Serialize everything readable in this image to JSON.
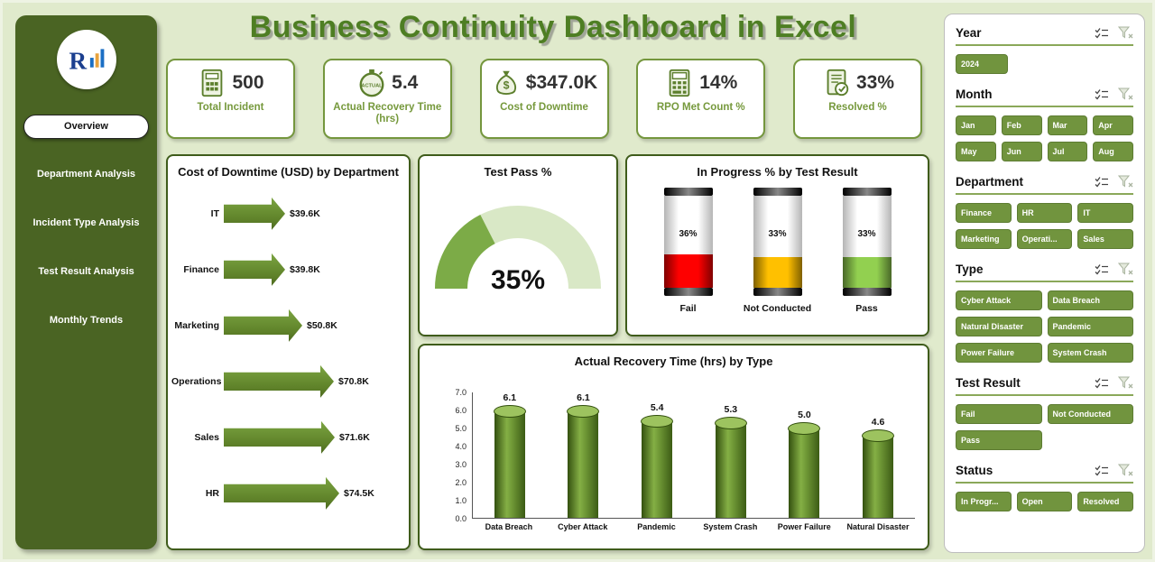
{
  "title": "Business Continuity Dashboard in Excel",
  "sidebar": {
    "items": [
      {
        "label": "Overview",
        "active": true
      },
      {
        "label": "Department Analysis",
        "active": false
      },
      {
        "label": "Incident Type Analysis",
        "active": false
      },
      {
        "label": "Test Result Analysis",
        "active": false
      },
      {
        "label": "Monthly Trends",
        "active": false
      }
    ]
  },
  "kpis": [
    {
      "value": "500",
      "label": "Total Incident",
      "icon": "incident-report-icon"
    },
    {
      "value": "5.4",
      "label": "Actual Recovery Time (hrs)",
      "icon": "stopwatch-icon"
    },
    {
      "value": "$347.0K",
      "label": "Cost of Downtime",
      "icon": "money-bag-icon"
    },
    {
      "value": "14%",
      "label": "RPO Met Count %",
      "icon": "calculator-icon"
    },
    {
      "value": "33%",
      "label": "Resolved %",
      "icon": "document-check-icon"
    }
  ],
  "chart_data": [
    {
      "type": "bar",
      "orientation": "horizontal",
      "title": "Cost of Downtime (USD) by Department",
      "categories": [
        "IT",
        "Finance",
        "Marketing",
        "Operations",
        "Sales",
        "HR"
      ],
      "values": [
        39.6,
        39.8,
        50.8,
        70.8,
        71.6,
        74.5
      ],
      "labels": [
        "$39.6K",
        "$39.8K",
        "$50.8K",
        "$70.8K",
        "$71.6K",
        "$74.5K"
      ],
      "bar_color": "#5e8129"
    },
    {
      "type": "gauge",
      "title": "Test Pass %",
      "value": 35,
      "max": 100,
      "label": "35%",
      "fill_color": "#7cab47",
      "track_color": "#d9e8c6"
    },
    {
      "type": "bar",
      "title": "In Progress % by Test Result",
      "categories": [
        "Fail",
        "Not Conducted",
        "Pass"
      ],
      "values": [
        36,
        33,
        33
      ],
      "labels": [
        "36%",
        "33%",
        "33%"
      ],
      "colors": [
        "#fe0000",
        "#ffc000",
        "#92d050"
      ]
    },
    {
      "type": "bar",
      "title": "Actual Recovery Time (hrs) by Type",
      "categories": [
        "Data Breach",
        "Cyber Attack",
        "Pandemic",
        "System Crash",
        "Power Failure",
        "Natural Disaster"
      ],
      "values": [
        6.1,
        6.1,
        5.4,
        5.3,
        5.0,
        4.6
      ],
      "labels": [
        "6.1",
        "6.1",
        "5.4",
        "5.3",
        "5.0",
        "4.6"
      ],
      "ylim": [
        0,
        7
      ],
      "yticks": [
        "7.0",
        "6.0",
        "5.0",
        "4.0",
        "3.0",
        "2.0",
        "1.0",
        "0.0"
      ],
      "bar_color": "#6c9434"
    }
  ],
  "slicers": [
    {
      "title": "Year",
      "cols": 1,
      "items": [
        "2024"
      ]
    },
    {
      "title": "Month",
      "cols": 4,
      "items": [
        "Jan",
        "Feb",
        "Mar",
        "Apr",
        "May",
        "Jun",
        "Jul",
        "Aug"
      ]
    },
    {
      "title": "Department",
      "cols": 3,
      "items": [
        "Finance",
        "HR",
        "IT",
        "Marketing",
        "Operati...",
        "Sales"
      ]
    },
    {
      "title": "Type",
      "cols": 2,
      "items": [
        "Cyber Attack",
        "Data Breach",
        "Natural Disaster",
        "Pandemic",
        "Power Failure",
        "System Crash"
      ]
    },
    {
      "title": "Test Result",
      "cols": 2,
      "items": [
        "Fail",
        "Not Conducted",
        "Pass"
      ]
    },
    {
      "title": "Status",
      "cols": 3,
      "items": [
        "In Progr...",
        "Open",
        "Resolved"
      ]
    }
  ]
}
